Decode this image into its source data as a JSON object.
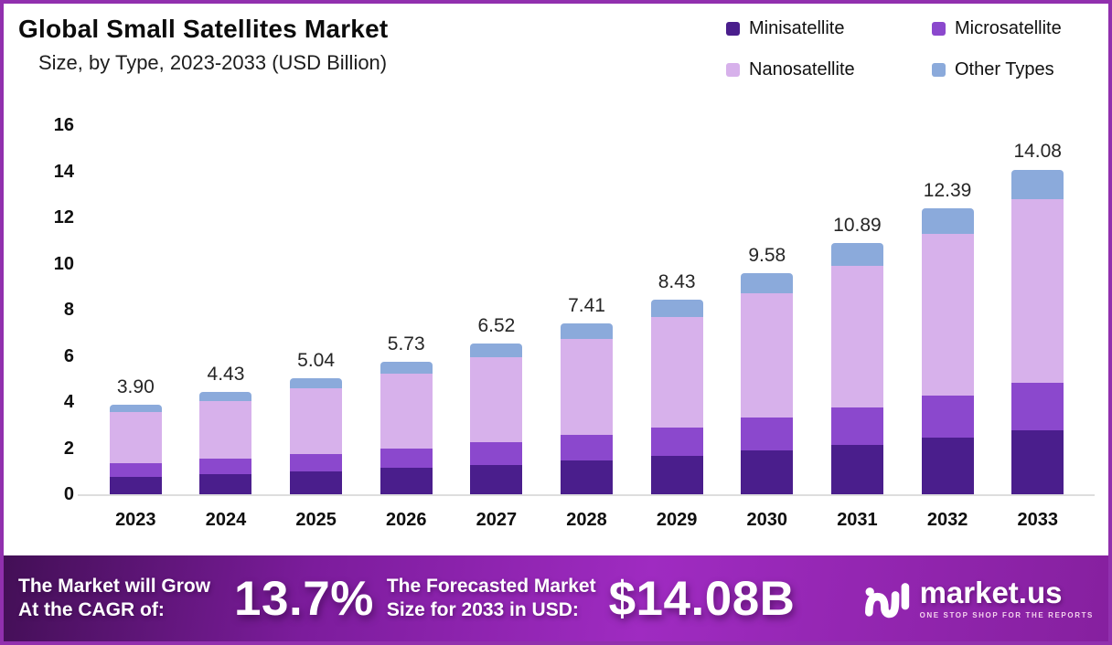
{
  "header": {
    "title": "Global Small Satellites Market",
    "subtitle": "Size, by Type, 2023-2033 (USD Billion)"
  },
  "legend": [
    {
      "label": "Minisatellite",
      "color": "#4A1E8C"
    },
    {
      "label": "Microsatellite",
      "color": "#8B48CD"
    },
    {
      "label": "Nanosatellite",
      "color": "#D7B1EB"
    },
    {
      "label": "Other Types",
      "color": "#8BAADB"
    }
  ],
  "chart_data": {
    "type": "bar",
    "stacked": true,
    "title": "Global Small Satellites Market Size, by Type, 2023-2033 (USD Billion)",
    "xlabel": "",
    "ylabel": "USD Billion",
    "ylim": [
      0,
      16
    ],
    "y_ticks": [
      0,
      2,
      4,
      6,
      8,
      10,
      12,
      14,
      16
    ],
    "grid": false,
    "legend_position": "top-right",
    "categories": [
      "2023",
      "2024",
      "2025",
      "2026",
      "2027",
      "2028",
      "2029",
      "2030",
      "2031",
      "2032",
      "2033"
    ],
    "series": [
      {
        "name": "Minisatellite",
        "color": "#4A1E8C",
        "values": [
          0.77,
          0.87,
          0.99,
          1.13,
          1.28,
          1.46,
          1.66,
          1.89,
          2.15,
          2.44,
          2.77
        ]
      },
      {
        "name": "Microsatellite",
        "color": "#8B48CD",
        "values": [
          0.58,
          0.66,
          0.75,
          0.85,
          0.97,
          1.1,
          1.25,
          1.42,
          1.61,
          1.83,
          2.08
        ]
      },
      {
        "name": "Nanosatellite",
        "color": "#D7B1EB",
        "values": [
          2.2,
          2.5,
          2.85,
          3.24,
          3.68,
          4.19,
          4.76,
          5.41,
          6.15,
          7.0,
          7.96
        ]
      },
      {
        "name": "Other Types",
        "color": "#8BAADB",
        "values": [
          0.35,
          0.4,
          0.45,
          0.51,
          0.59,
          0.66,
          0.76,
          0.86,
          0.98,
          1.12,
          1.27
        ]
      }
    ],
    "totals": [
      3.9,
      4.43,
      5.04,
      5.73,
      6.52,
      7.41,
      8.43,
      9.58,
      10.89,
      12.39,
      14.08
    ],
    "total_labels": [
      "3.90",
      "4.43",
      "5.04",
      "5.73",
      "6.52",
      "7.41",
      "8.43",
      "9.58",
      "10.89",
      "12.39",
      "14.08"
    ]
  },
  "footer": {
    "cagr_line1": "The Market will Grow",
    "cagr_line2": "At the CAGR of:",
    "cagr_value": "13.7%",
    "forecast_line1": "The Forecasted Market",
    "forecast_line2": "Size for 2033 in USD:",
    "forecast_value": "$14.08B",
    "brand": "market.us",
    "brand_tagline": "ONE STOP SHOP FOR THE REPORTS"
  },
  "colors": {
    "page_border": "#9130AE",
    "baseline": "#DEDEDE",
    "footer_gradient": [
      "#430F56",
      "#7C1C9C",
      "#9F2BC1",
      "#86209F"
    ]
  }
}
